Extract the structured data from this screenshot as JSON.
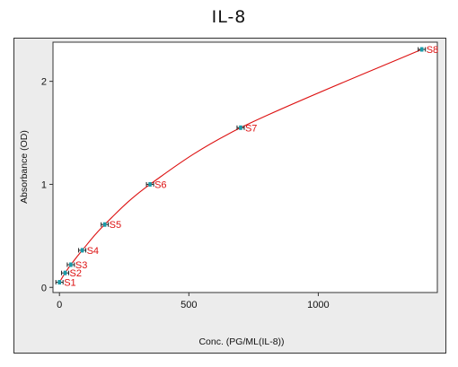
{
  "chart_data": {
    "type": "scatter",
    "title": "IL-8",
    "xlabel": "Conc. (PG/ML(IL-8))",
    "ylabel": "Absorbance (OD)",
    "xlim": [
      -25,
      1460
    ],
    "ylim": [
      -0.05,
      2.38
    ],
    "xticks": [
      0,
      500,
      1000
    ],
    "yticks": [
      0,
      1,
      2
    ],
    "grid": false,
    "curve_color": "#dd1111",
    "marker_color": "#1a9aa8",
    "label_color": "#dd1111",
    "points": [
      {
        "label": "S1",
        "x": 0,
        "y": 0.05
      },
      {
        "label": "S2",
        "x": 22,
        "y": 0.14
      },
      {
        "label": "S3",
        "x": 44,
        "y": 0.22
      },
      {
        "label": "S4",
        "x": 88,
        "y": 0.36
      },
      {
        "label": "S5",
        "x": 175,
        "y": 0.61
      },
      {
        "label": "S6",
        "x": 350,
        "y": 1.0
      },
      {
        "label": "S7",
        "x": 700,
        "y": 1.55
      },
      {
        "label": "S8",
        "x": 1400,
        "y": 2.31
      }
    ]
  }
}
